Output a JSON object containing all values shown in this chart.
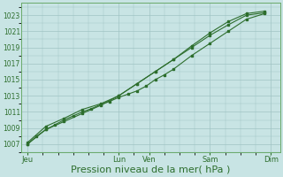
{
  "bg_color": "#c8e4e4",
  "grid_color": "#a0c4c4",
  "line_color": "#2d6e2d",
  "marker_color": "#2d6e2d",
  "ylim": [
    1006.0,
    1024.5
  ],
  "yticks": [
    1007,
    1009,
    1011,
    1013,
    1015,
    1017,
    1019,
    1021,
    1023
  ],
  "xlabel": "Pression niveau de la mer( hPa )",
  "xlabel_fontsize": 8,
  "xtick_labels": [
    "Jeu",
    "Lun",
    "Ven",
    "Sam",
    "Dim"
  ],
  "xtick_positions": [
    0,
    30,
    40,
    60,
    80
  ],
  "xlim": [
    -2,
    83
  ],
  "series1_x": [
    0,
    3,
    6,
    9,
    12,
    15,
    18,
    21,
    24,
    27,
    30,
    33,
    36,
    39,
    42,
    45,
    48,
    54,
    60,
    66,
    72,
    78
  ],
  "values1": [
    1007.0,
    1008.0,
    1008.8,
    1009.4,
    1010.0,
    1010.5,
    1011.0,
    1011.4,
    1011.9,
    1012.3,
    1012.8,
    1013.2,
    1013.6,
    1014.2,
    1015.0,
    1015.6,
    1016.3,
    1018.0,
    1019.5,
    1021.0,
    1022.5,
    1023.2
  ],
  "series2_x": [
    0,
    6,
    12,
    18,
    24,
    30,
    36,
    42,
    48,
    54,
    60,
    66,
    72,
    78
  ],
  "values2": [
    1007.2,
    1009.2,
    1010.2,
    1011.3,
    1012.0,
    1013.0,
    1014.5,
    1016.0,
    1017.5,
    1019.2,
    1020.8,
    1022.2,
    1023.2,
    1023.5
  ],
  "series3_x": [
    0,
    6,
    12,
    18,
    24,
    30,
    36,
    42,
    48,
    54,
    60,
    66,
    72,
    78
  ],
  "values3": [
    1007.0,
    1008.8,
    1009.8,
    1010.8,
    1011.8,
    1013.0,
    1014.5,
    1016.0,
    1017.5,
    1019.0,
    1020.5,
    1021.8,
    1023.0,
    1023.3
  ]
}
